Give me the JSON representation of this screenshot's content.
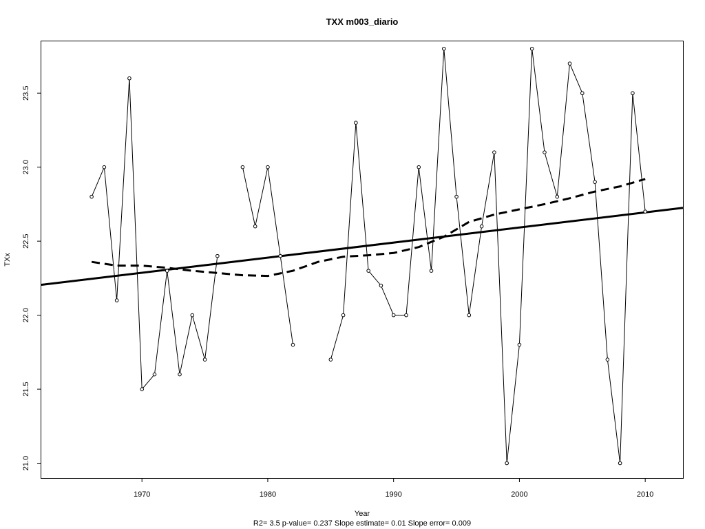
{
  "chart_data": {
    "type": "line",
    "title": "TXX   m003_diario",
    "xlabel": "Year",
    "ylabel": "TXx",
    "footnote": "R2= 3.5  p-value= 0.237  Slope estimate= 0.01  Slope error= 0.009",
    "xlim": [
      1962,
      2013
    ],
    "ylim": [
      20.9,
      23.85
    ],
    "x_ticks": [
      1970,
      1980,
      1990,
      2000,
      2010
    ],
    "y_ticks": [
      21.0,
      21.5,
      22.0,
      22.5,
      23.0,
      23.5
    ],
    "y_tick_labels": [
      "21.0",
      "21.5",
      "22.0",
      "22.5",
      "23.0",
      "23.5"
    ],
    "series": [
      {
        "style": "line-with-points",
        "x": [
          1966,
          1967,
          1968,
          1969,
          1970,
          1971,
          1972,
          1973,
          1974,
          1975,
          1976,
          1977,
          1978,
          1979,
          1980,
          1981,
          1982,
          1983,
          1984,
          1985,
          1986,
          1987,
          1988,
          1989,
          1990,
          1991,
          1992,
          1993,
          1994,
          1995,
          1996,
          1997,
          1998,
          1999,
          2000,
          2001,
          2002,
          2003,
          2004,
          2005,
          2006,
          2007,
          2008,
          2009,
          2010
        ],
        "y": [
          22.8,
          23.0,
          22.1,
          23.6,
          21.5,
          21.6,
          22.3,
          21.6,
          22.0,
          21.7,
          22.4,
          null,
          23.0,
          22.6,
          23.0,
          22.4,
          21.8,
          null,
          null,
          21.7,
          22.0,
          23.3,
          22.3,
          22.2,
          22.0,
          22.0,
          23.0,
          22.3,
          23.8,
          22.8,
          22.0,
          22.6,
          23.1,
          21.0,
          21.8,
          23.8,
          23.1,
          22.8,
          23.7,
          23.5,
          22.9,
          21.7,
          21.0,
          23.5,
          22.7
        ]
      },
      {
        "style": "trend-solid",
        "x": [
          1962,
          2013
        ],
        "y": [
          22.205,
          22.725
        ]
      },
      {
        "style": "smooth-dashed",
        "x": [
          1966,
          1968,
          1970,
          1972,
          1974,
          1976,
          1978,
          1980,
          1982,
          1984,
          1986,
          1988,
          1990,
          1992,
          1994,
          1996,
          1998,
          2000,
          2002,
          2004,
          2006,
          2008,
          2010
        ],
        "y": [
          22.36,
          22.335,
          22.335,
          22.32,
          22.3,
          22.285,
          22.27,
          22.265,
          22.3,
          22.36,
          22.395,
          22.405,
          22.42,
          22.46,
          22.53,
          22.63,
          22.68,
          22.715,
          22.75,
          22.79,
          22.835,
          22.87,
          22.92
        ]
      }
    ],
    "grid": false,
    "legend": "none"
  }
}
